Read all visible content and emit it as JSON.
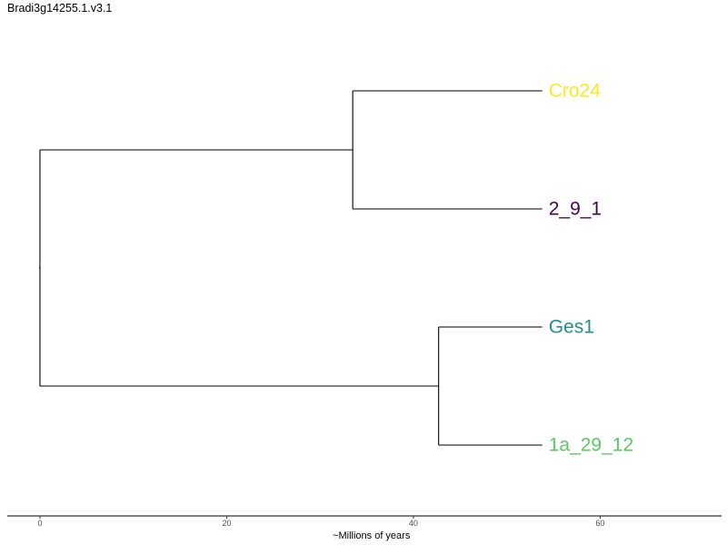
{
  "title": "Bradi3g14255.1.v3.1",
  "chart_data": {
    "type": "dendrogram",
    "title": "Bradi3g14255.1.v3.1",
    "xlabel": "~Millions of years",
    "ylabel": "",
    "xlim": [
      -3.5,
      73
    ],
    "xticks": [
      0,
      20,
      40,
      60
    ],
    "tick_labels": [
      "0",
      "20",
      "40",
      "60"
    ],
    "grid": false,
    "legend": "none",
    "tips": [
      {
        "name": "Cro24",
        "color": "#FDE725",
        "age": 53.8
      },
      {
        "name": "2_9_1",
        "color": "#440154",
        "age": 53.8
      },
      {
        "name": "Ges1",
        "color": "#21908C",
        "age": 53.8
      },
      {
        "name": "1a_29_12",
        "color": "#5DC863",
        "age": 53.8
      }
    ],
    "nodes": [
      {
        "id": "root",
        "x": 0,
        "children": [
          "n1",
          "n2"
        ]
      },
      {
        "id": "n1",
        "x": 33.5,
        "children": [
          "Cro24",
          "2_9_1"
        ]
      },
      {
        "id": "n2",
        "x": 42.7,
        "children": [
          "Ges1",
          "1a_29_12"
        ]
      }
    ]
  }
}
